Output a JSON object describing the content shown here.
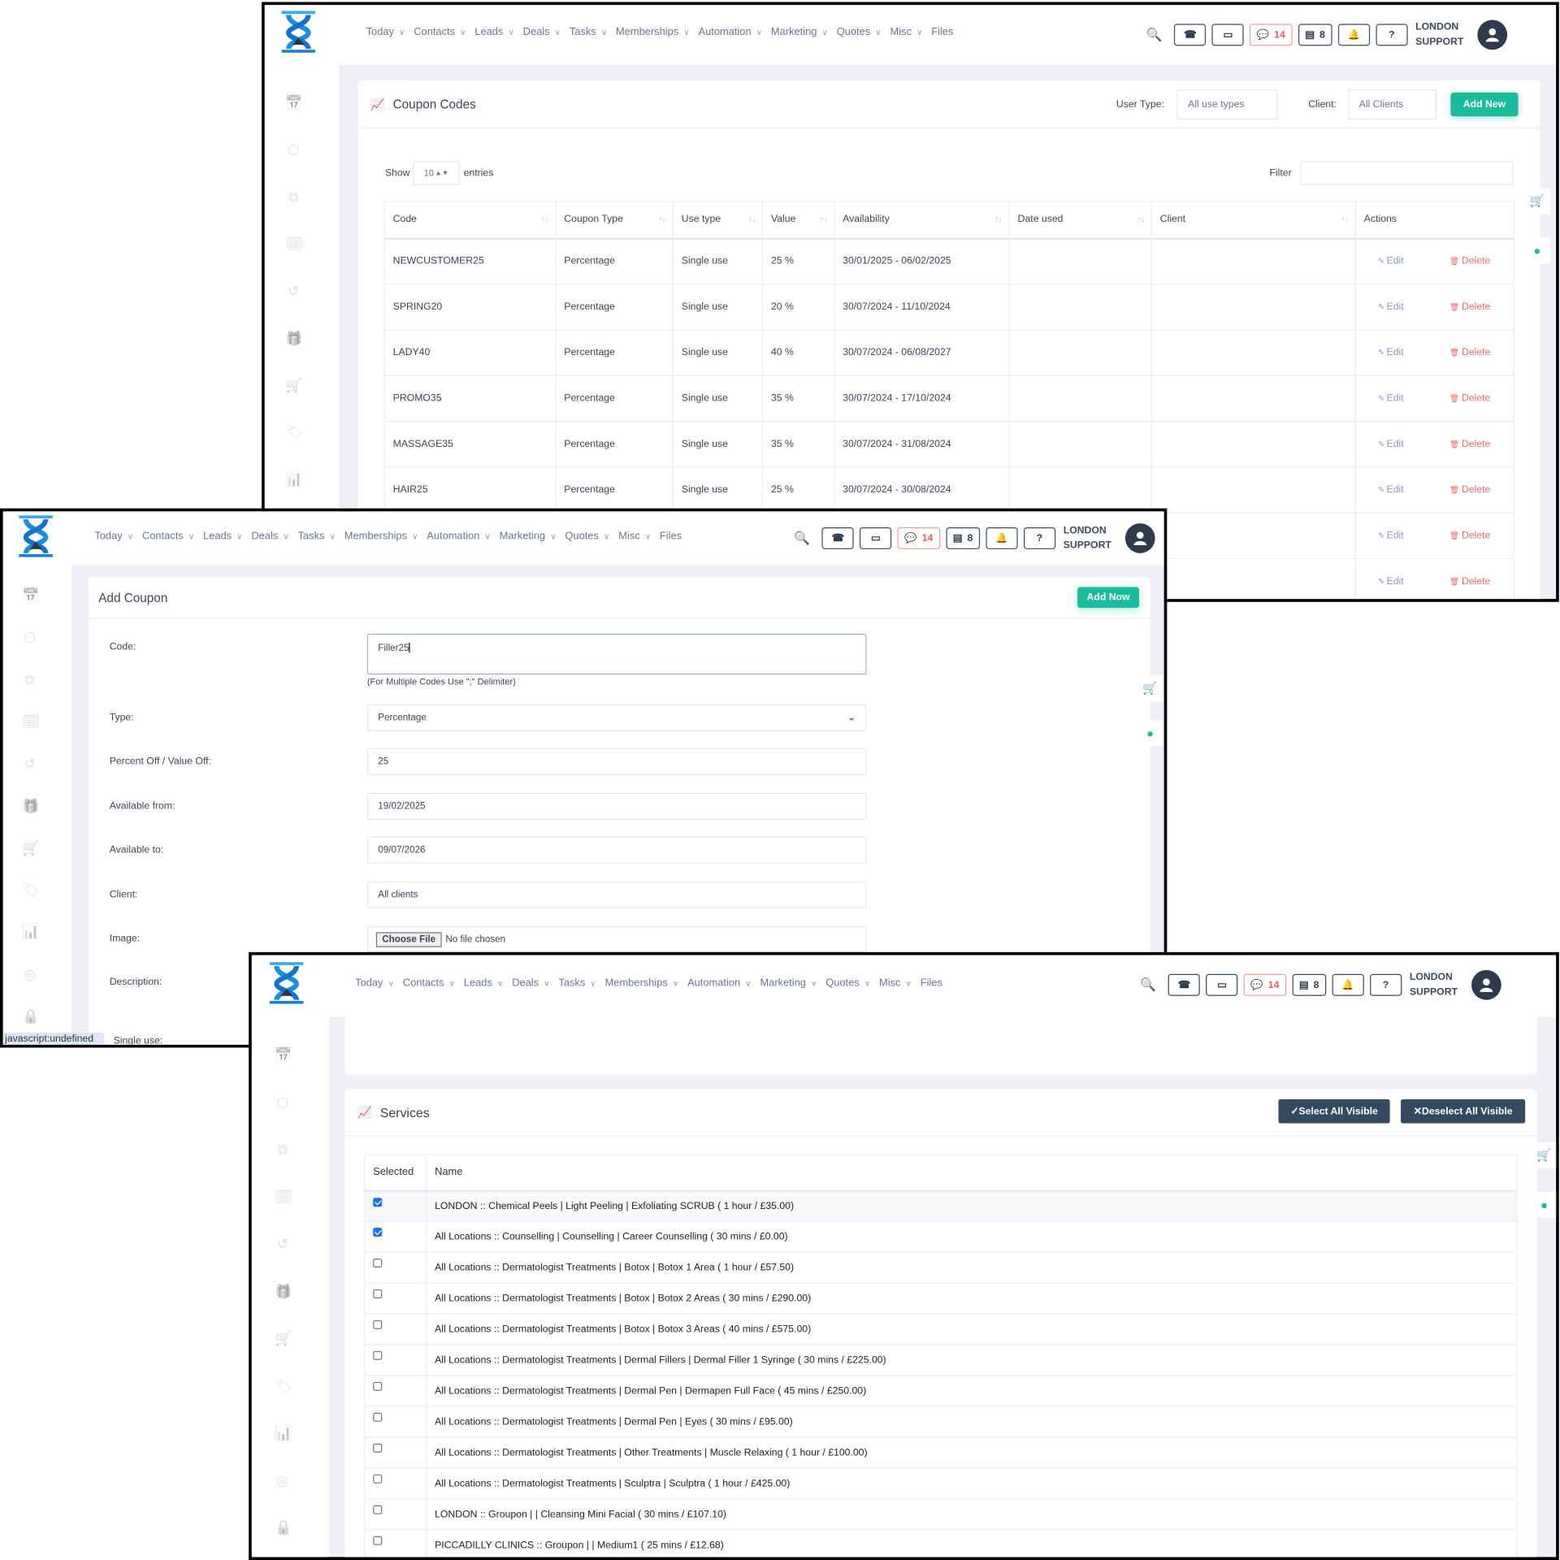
{
  "header": {
    "nav": [
      "Today",
      "Contacts",
      "Leads",
      "Deals",
      "Tasks",
      "Memberships",
      "Automation",
      "Marketing",
      "Quotes",
      "Misc",
      "Files"
    ],
    "nav_has_chevron": [
      true,
      true,
      true,
      true,
      true,
      true,
      true,
      true,
      true,
      true,
      false
    ],
    "tools": [
      {
        "icon": "search-icon"
      },
      {
        "icon": "phone-icon"
      },
      {
        "icon": "inbox-icon"
      },
      {
        "icon": "chat-icon",
        "count": "14"
      },
      {
        "icon": "store-icon",
        "count": "8"
      },
      {
        "icon": "bell-icon"
      },
      {
        "icon": "help-icon"
      }
    ],
    "user_line1": "LONDON",
    "user_line2": "SUPPORT"
  },
  "colors": {
    "accent": "#1bbc9b",
    "brand_blue": "#1a8fe0",
    "dark": "#354a5f",
    "danger": "#f06a6a"
  },
  "sidebar_icons": [
    "calendar-icon",
    "box-icon",
    "copy-icon",
    "calendar-check-icon",
    "history-icon",
    "gift-icon",
    "cart-icon",
    "tag-icon",
    "report-icon",
    "user-lock-icon",
    "lock-icon"
  ],
  "coupons": {
    "title": "Coupon Codes",
    "user_type_label": "User Type:",
    "user_type_value": "All use types",
    "client_label": "Client:",
    "client_value": "All Clients",
    "add_new": "Add New",
    "show": "Show",
    "entries_value": "10",
    "entries": "entries",
    "filter": "Filter",
    "columns": [
      "Code",
      "Coupon Type",
      "Use type",
      "Value",
      "Availability",
      "Date used",
      "Client",
      "Actions"
    ],
    "edit": "Edit",
    "delete": "Delete",
    "rows": [
      [
        "NEWCUSTOMER25",
        "Percentage",
        "Single use",
        "25 %",
        "30/01/2025 - 06/02/2025",
        "",
        ""
      ],
      [
        "SPRING20",
        "Percentage",
        "Single use",
        "20 %",
        "30/07/2024 - 11/10/2024",
        "",
        ""
      ],
      [
        "LADY40",
        "Percentage",
        "Single use",
        "40 %",
        "30/07/2024 - 06/08/2027",
        "",
        ""
      ],
      [
        "PROMO35",
        "Percentage",
        "Single use",
        "35 %",
        "30/07/2024 - 17/10/2024",
        "",
        ""
      ],
      [
        "MASSAGE35",
        "Percentage",
        "Single use",
        "35 %",
        "30/07/2024 - 31/08/2024",
        "",
        ""
      ],
      [
        "HAIR25",
        "Percentage",
        "Single use",
        "25 %",
        "30/07/2024 - 30/08/2024",
        "",
        ""
      ],
      [
        "",
        "",
        "",
        "",
        "",
        "",
        ""
      ],
      [
        "",
        "",
        "",
        "",
        "",
        "",
        ""
      ]
    ]
  },
  "add_coupon": {
    "title": "Add Coupon",
    "add_new": "Add Now",
    "code_label": "Code:",
    "code_value": "Filler25",
    "code_hint": "(For Multiple Codes Use \";\" Delimiter)",
    "type_label": "Type:",
    "type_value": "Percentage",
    "percent_label": "Percent Off / Value Off:",
    "percent_value": "25",
    "from_label": "Available from:",
    "from_value": "19/02/2025",
    "to_label": "Available to:",
    "to_value": "09/07/2026",
    "client_label": "Client:",
    "client_value": "All clients",
    "image_label": "Image:",
    "choose_file": "Choose File",
    "no_file": "No file chosen",
    "description_label": "Description:",
    "single_use_label": "Single use:",
    "status_bar": "javascript:undefined"
  },
  "services": {
    "title": "Services",
    "select_all": "Select All Visible",
    "deselect_all": "Deselect All Visible",
    "columns": [
      "Selected",
      "Name"
    ],
    "rows": [
      {
        "checked": true,
        "name": "LONDON :: Chemical Peels | Light Peeling | Exfoliating SCRUB ( 1 hour / £35.00)"
      },
      {
        "checked": true,
        "name": "All Locations :: Counselling | Counselling | Career Counselling ( 30 mins / £0.00)"
      },
      {
        "checked": false,
        "name": "All Locations :: Dermatologist Treatments | Botox | Botox 1 Area ( 1 hour / £57.50)"
      },
      {
        "checked": false,
        "name": "All Locations :: Dermatologist Treatments | Botox | Botox 2 Areas ( 30 mins / £290.00)"
      },
      {
        "checked": false,
        "name": "All Locations :: Dermatologist Treatments | Botox | Botox 3 Areas ( 40 mins / £575.00)"
      },
      {
        "checked": false,
        "name": "All Locations :: Dermatologist Treatments | Dermal Fillers | Dermal Filler 1 Syringe ( 30 mins / £225.00)"
      },
      {
        "checked": false,
        "name": "All Locations :: Dermatologist Treatments | Dermal Pen | Dermapen Full Face ( 45 mins / £250.00)"
      },
      {
        "checked": false,
        "name": "All Locations :: Dermatologist Treatments | Dermal Pen | Eyes ( 30 mins / £95.00)"
      },
      {
        "checked": false,
        "name": "All Locations :: Dermatologist Treatments | Other Treatments | Muscle Relaxing ( 1 hour / £100.00)"
      },
      {
        "checked": false,
        "name": "All Locations :: Dermatologist Treatments | Sculptra | Sculptra ( 1 hour / £425.00)"
      },
      {
        "checked": false,
        "name": "LONDON :: Groupon | | Cleansing Mini Facial ( 30 mins / £107.10)"
      },
      {
        "checked": false,
        "name": "PICCADILLY CLINICS :: Groupon | | Medium1 ( 25 mins / £12.68)"
      }
    ]
  }
}
